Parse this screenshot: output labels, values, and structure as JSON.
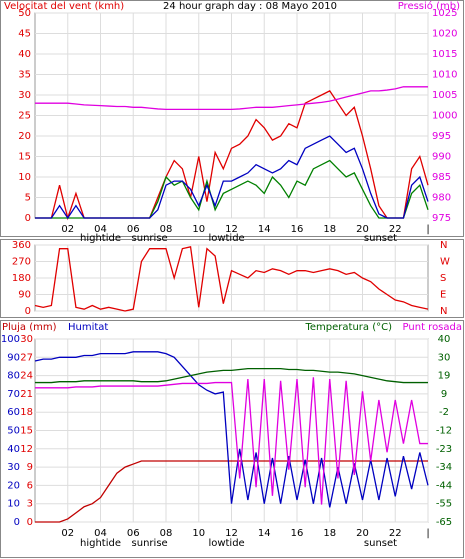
{
  "chart_data": [
    {
      "type": "line",
      "title": "24 hour graph day : 08 Mayo 2010",
      "ylabel": "Velocitat del vent (kmh)",
      "y2label": "Pressió (mb)",
      "ycolor": "#e00000",
      "y2color": "#e000e0",
      "x": [
        0,
        0.5,
        1,
        1.5,
        2,
        2.5,
        3,
        3.5,
        4,
        4.5,
        5,
        5.5,
        6,
        6.5,
        7,
        7.5,
        8,
        8.5,
        9,
        9.5,
        10,
        10.5,
        11,
        11.5,
        12,
        12.5,
        13,
        13.5,
        14,
        14.5,
        15,
        15.5,
        16,
        16.5,
        17,
        17.5,
        18,
        18.5,
        19,
        19.5,
        20,
        20.5,
        21,
        21.5,
        22,
        22.5,
        23,
        23.5,
        24
      ],
      "xlim": [
        0,
        24
      ],
      "xticks": [
        {
          "value": 2,
          "label": "02"
        },
        {
          "value": 4,
          "label": "04"
        },
        {
          "value": 6,
          "label": "06"
        },
        {
          "value": 8,
          "label": "08"
        },
        10,
        12,
        14,
        16,
        18,
        20,
        22,
        {
          "value": 24,
          "label": "|"
        }
      ],
      "ylim": [
        0,
        50
      ],
      "yticks": [
        0,
        5,
        10,
        15,
        20,
        25,
        30,
        35,
        40,
        45,
        50
      ],
      "y2lim": [
        975,
        1025
      ],
      "y2ticks": [
        975,
        980,
        985,
        990,
        995,
        1000,
        1005,
        1010,
        1015,
        1020,
        1025
      ],
      "grid": true,
      "annotations": [
        {
          "text": "hightide",
          "x": 4
        },
        {
          "text": "sunrise",
          "x": 7
        },
        {
          "text": "lowtide",
          "x": 11.7
        },
        {
          "text": "sunset",
          "x": 21.1
        }
      ],
      "series": [
        {
          "color": "#e00000",
          "values": [
            0,
            0,
            0,
            8,
            0,
            6,
            0,
            0,
            0,
            0,
            0,
            0,
            0,
            0,
            0,
            5,
            10,
            14,
            12,
            5,
            15,
            4,
            16,
            12,
            17,
            18,
            20,
            24,
            22,
            19,
            20,
            23,
            22,
            28,
            29,
            30,
            31,
            28,
            25,
            27,
            20,
            12,
            3,
            0,
            0,
            0,
            12,
            15,
            8
          ]
        },
        {
          "color": "#008000",
          "values": [
            0,
            0,
            0,
            0,
            0,
            0,
            0,
            0,
            0,
            0,
            0,
            0,
            0,
            0,
            0,
            4,
            10,
            8,
            9,
            5,
            2,
            9,
            2,
            6,
            7,
            8,
            9,
            8,
            6,
            10,
            8,
            5,
            9,
            8,
            12,
            13,
            14,
            12,
            10,
            11,
            7,
            3,
            0,
            0,
            0,
            0,
            6,
            8,
            2
          ]
        },
        {
          "color": "#0000c0",
          "values": [
            0,
            0,
            0,
            3,
            0,
            3,
            0,
            0,
            0,
            0,
            0,
            0,
            0,
            0,
            0,
            2,
            8,
            9,
            9,
            7,
            3,
            8,
            3,
            9,
            9,
            10,
            11,
            13,
            12,
            11,
            12,
            14,
            13,
            17,
            18,
            19,
            20,
            18,
            16,
            17,
            12,
            6,
            1,
            0,
            0,
            0,
            8,
            10,
            4
          ]
        },
        {
          "color": "#e000e0",
          "axis": "y2",
          "values": [
            1003,
            1003,
            1003,
            1003,
            1003,
            1002.8,
            1002.6,
            1002.5,
            1002.4,
            1002.3,
            1002.2,
            1002.2,
            1002,
            1002,
            1001.8,
            1001.6,
            1001.5,
            1001.5,
            1001.5,
            1001.5,
            1001.5,
            1001.5,
            1001.5,
            1001.5,
            1001.5,
            1001.6,
            1001.8,
            1002,
            1002,
            1002,
            1002.2,
            1002.4,
            1002.6,
            1002.8,
            1003,
            1003.2,
            1003.5,
            1004,
            1004.5,
            1005,
            1005.5,
            1006,
            1006,
            1006.2,
            1006.5,
            1007,
            1007,
            1007,
            1007
          ]
        }
      ]
    },
    {
      "type": "line",
      "ycolor": "#e00000",
      "y2color": "#e00000",
      "x": [
        0,
        0.5,
        1,
        1.5,
        2,
        2.5,
        3,
        3.5,
        4,
        4.5,
        5,
        5.5,
        6,
        6.5,
        7,
        7.5,
        8,
        8.5,
        9,
        9.5,
        10,
        10.5,
        11,
        11.5,
        12,
        12.5,
        13,
        13.5,
        14,
        14.5,
        15,
        15.5,
        16,
        16.5,
        17,
        17.5,
        18,
        18.5,
        19,
        19.5,
        20,
        20.5,
        21,
        21.5,
        22,
        22.5,
        23,
        23.5,
        24
      ],
      "xlim": [
        0,
        24
      ],
      "xgrid": [
        2,
        4,
        6,
        8,
        10,
        12,
        14,
        16,
        18,
        20,
        22
      ],
      "ylim": [
        0,
        360
      ],
      "yticks": [
        0,
        90,
        180,
        270,
        360
      ],
      "y2lim": [
        0,
        360
      ],
      "y2ticks": [
        {
          "value": 0,
          "label": "N"
        },
        {
          "value": 90,
          "label": "E"
        },
        {
          "value": 180,
          "label": "S"
        },
        {
          "value": 270,
          "label": "W"
        },
        {
          "value": 360,
          "label": "N"
        }
      ],
      "grid": true,
      "series": [
        {
          "color": "#e00000",
          "values": [
            30,
            20,
            30,
            340,
            340,
            20,
            10,
            30,
            10,
            20,
            10,
            0,
            10,
            270,
            340,
            340,
            340,
            180,
            340,
            350,
            20,
            340,
            300,
            40,
            220,
            200,
            180,
            220,
            210,
            230,
            220,
            200,
            220,
            220,
            210,
            220,
            230,
            220,
            200,
            210,
            180,
            160,
            120,
            90,
            60,
            50,
            30,
            20,
            10
          ]
        }
      ]
    },
    {
      "type": "line",
      "ycolor": "#0000c0",
      "y2color": "#e00000",
      "y3color": "#006000",
      "x": [
        0,
        0.5,
        1,
        1.5,
        2,
        2.5,
        3,
        3.5,
        4,
        4.5,
        5,
        5.5,
        6,
        6.5,
        7,
        7.5,
        8,
        8.5,
        9,
        9.5,
        10,
        10.5,
        11,
        11.5,
        12,
        12.5,
        13,
        13.5,
        14,
        14.5,
        15,
        15.5,
        16,
        16.5,
        17,
        17.5,
        18,
        18.5,
        19,
        19.5,
        20,
        20.5,
        21,
        21.5,
        22,
        22.5,
        23,
        23.5,
        24
      ],
      "xlim": [
        0,
        24
      ],
      "xticks": [
        {
          "value": 2,
          "label": "02"
        },
        {
          "value": 4,
          "label": "04"
        },
        {
          "value": 6,
          "label": "06"
        },
        {
          "value": 8,
          "label": "08"
        },
        10,
        12,
        14,
        16,
        18,
        20,
        22,
        {
          "value": 24,
          "label": "|"
        }
      ],
      "ylim": [
        0,
        100
      ],
      "yticks": [
        0,
        10,
        20,
        30,
        40,
        50,
        60,
        70,
        80,
        90,
        100
      ],
      "y2lim": [
        0,
        30
      ],
      "y2ticks": [
        0,
        3,
        6,
        9,
        12,
        15,
        18,
        21,
        24,
        27,
        30
      ],
      "y3lim": [
        -65,
        40
      ],
      "y3ticks": [
        -65,
        {
          "value": -54.5,
          "label": "-55"
        },
        -44,
        {
          "value": -33.5,
          "label": "-34"
        },
        -23,
        {
          "value": -12.5,
          "label": "-12"
        },
        -2,
        {
          "value": 8.5,
          "label": "9"
        },
        19,
        {
          "value": 29.5,
          "label": "30"
        },
        40
      ],
      "grid": true,
      "annotations": [
        {
          "text": "hightide",
          "x": 4
        },
        {
          "text": "sunrise",
          "x": 7
        },
        {
          "text": "lowtide",
          "x": 11.7
        },
        {
          "text": "sunset",
          "x": 21.1
        }
      ],
      "series": [
        {
          "name": "Pluja (mm)",
          "color": "#c00000",
          "axis": "y2",
          "values": [
            0,
            0,
            0,
            0,
            0.5,
            1.5,
            2.5,
            3,
            4,
            6,
            8,
            9,
            9.5,
            10,
            10,
            10,
            10,
            10,
            10,
            10,
            10,
            10,
            10,
            10,
            10,
            10,
            10,
            10,
            10,
            10,
            10,
            10,
            10,
            10,
            10,
            10,
            10,
            10,
            10,
            10,
            10,
            10,
            10,
            10,
            10,
            10,
            10,
            10,
            10
          ]
        },
        {
          "name": "Humitat",
          "color": "#0000c0",
          "values": [
            88,
            89,
            89,
            90,
            90,
            90,
            91,
            91,
            92,
            92,
            92,
            92,
            93,
            93,
            93,
            93,
            92,
            90,
            85,
            80,
            75,
            72,
            70,
            71,
            10,
            40,
            12,
            38,
            10,
            35,
            10,
            36,
            12,
            34,
            10,
            35,
            8,
            30,
            10,
            32,
            12,
            34,
            12,
            35,
            14,
            36,
            18,
            38,
            20
          ]
        },
        {
          "name": "Temperatura (°C)",
          "color": "#006000",
          "axis": "y3",
          "values": [
            15,
            15,
            15,
            15.5,
            15.5,
            15.5,
            16,
            16,
            16,
            16,
            16,
            16,
            16,
            15.5,
            15.5,
            15.5,
            16,
            17,
            18,
            19,
            20,
            21,
            21.5,
            22,
            22,
            22.5,
            23,
            23,
            23,
            23,
            23,
            22.5,
            22.5,
            22,
            22,
            21.5,
            21,
            21,
            20.5,
            20,
            19,
            18,
            17,
            16,
            15.5,
            15,
            15,
            15,
            15
          ]
        },
        {
          "name": "Punt rosada",
          "color": "#e000e0",
          "axis": "y3",
          "values": [
            12,
            12,
            12,
            12,
            12,
            12.5,
            12.5,
            12.5,
            13,
            13,
            13,
            13,
            13,
            13,
            13,
            13,
            13.5,
            14,
            14.5,
            14.5,
            14.5,
            14.5,
            15,
            15,
            15,
            -40,
            17,
            -45,
            17,
            -50,
            16,
            -35,
            17,
            -45,
            18,
            -55,
            17,
            -40,
            16,
            -38,
            10,
            -30,
            5,
            -25,
            5,
            -20,
            5,
            -20,
            -20
          ]
        }
      ]
    }
  ]
}
